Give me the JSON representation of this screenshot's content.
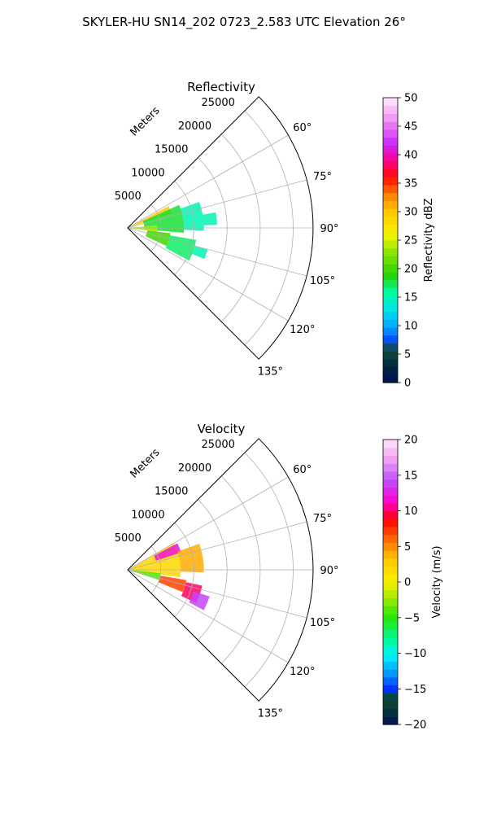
{
  "suptitle": "SKYLER-HU  SN14_202  0723_2.583 UTC Elevation 26°",
  "chart_data": [
    {
      "type": "heatmap",
      "projection": "polar-sector",
      "title": "Reflectivity",
      "radial_label": "Meters",
      "radial_ticks": [
        5000,
        10000,
        15000,
        20000,
        25000
      ],
      "radial_tick_labels": [
        "5000",
        "10000",
        "15000",
        "20000",
        "25000"
      ],
      "r_max": 28000,
      "azimuth_range_deg": [
        45,
        135
      ],
      "azimuth_ticks": [
        60,
        75,
        90,
        105,
        120,
        135
      ],
      "azimuth_tick_labels": [
        "60°",
        "75°",
        "90°",
        "105°",
        "120°",
        "135°"
      ],
      "grid": true,
      "colorbar": {
        "label": "Reflectivity dBZ",
        "vmin": 0,
        "vmax": 50,
        "ticks": [
          0,
          5,
          10,
          15,
          20,
          25,
          30,
          35,
          40,
          45,
          50
        ],
        "tick_labels": [
          "0",
          "5",
          "10",
          "15",
          "20",
          "25",
          "30",
          "35",
          "40",
          "45",
          "50"
        ],
        "colormap": "pyart_HomeyerRainbow"
      },
      "echo_regions": [
        {
          "az": [
            62,
            72
          ],
          "r": [
            600,
            7000
          ],
          "value": 30
        },
        {
          "az": [
            66,
            95
          ],
          "r": [
            2500,
            8500
          ],
          "value": 18
        },
        {
          "az": [
            70,
            92
          ],
          "r": [
            8500,
            11500
          ],
          "value": 15
        },
        {
          "az": [
            80,
            88
          ],
          "r": [
            11500,
            13500
          ],
          "value": 15
        },
        {
          "az": [
            85,
            97
          ],
          "r": [
            500,
            4500
          ],
          "value": 24
        },
        {
          "az": [
            97,
            115
          ],
          "r": [
            3000,
            6500
          ],
          "value": 20
        },
        {
          "az": [
            100,
            118
          ],
          "r": [
            6500,
            10500
          ],
          "value": 17
        },
        {
          "az": [
            105,
            112
          ],
          "r": [
            10500,
            12500
          ],
          "value": 15
        }
      ]
    },
    {
      "type": "heatmap",
      "projection": "polar-sector",
      "title": "Velocity",
      "radial_label": "Meters",
      "radial_ticks": [
        5000,
        10000,
        15000,
        20000,
        25000
      ],
      "radial_tick_labels": [
        "5000",
        "10000",
        "15000",
        "20000",
        "25000"
      ],
      "r_max": 28000,
      "azimuth_range_deg": [
        45,
        135
      ],
      "azimuth_ticks": [
        60,
        75,
        90,
        105,
        120,
        135
      ],
      "azimuth_tick_labels": [
        "60°",
        "75°",
        "90°",
        "105°",
        "120°",
        "135°"
      ],
      "grid": true,
      "colorbar": {
        "label": "Velocity (m/s)",
        "vmin": -20,
        "vmax": 20,
        "ticks": [
          -20,
          -15,
          -10,
          -5,
          0,
          5,
          10,
          15,
          20
        ],
        "tick_labels": [
          "−20",
          "−15",
          "−10",
          "−5",
          "0",
          "5",
          "10",
          "15",
          "20"
        ],
        "colormap": "pyart_BuDRd18"
      },
      "echo_regions": [
        {
          "az": [
            60,
            98
          ],
          "r": [
            500,
            8000
          ],
          "value": 2
        },
        {
          "az": [
            62,
            72
          ],
          "r": [
            4500,
            8500
          ],
          "value": 12
        },
        {
          "az": [
            70,
            92
          ],
          "r": [
            8000,
            11500
          ],
          "value": 4
        },
        {
          "az": [
            96,
            108
          ],
          "r": [
            600,
            5000
          ],
          "value": -4
        },
        {
          "az": [
            100,
            112
          ],
          "r": [
            5000,
            9000
          ],
          "value": 7
        },
        {
          "az": [
            102,
            116
          ],
          "r": [
            9000,
            11500
          ],
          "value": 10
        },
        {
          "az": [
            108,
            118
          ],
          "r": [
            10500,
            13000
          ],
          "value": 14
        }
      ]
    }
  ]
}
